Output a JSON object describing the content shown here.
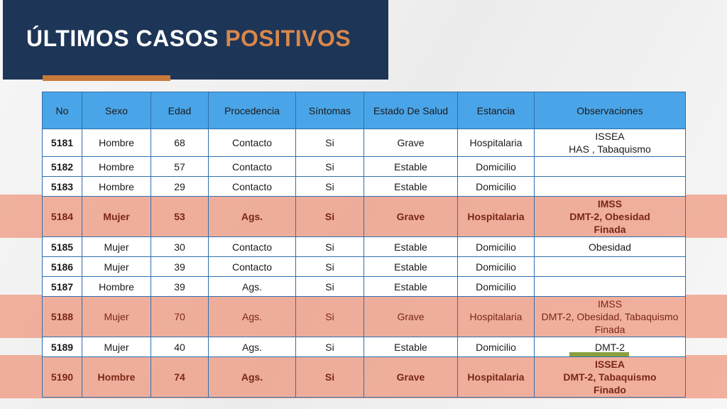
{
  "header": {
    "title": "ÚLTIMOS CASOS",
    "title_highlight": "POSITIVOS"
  },
  "table": {
    "columns": [
      "No",
      "Sexo",
      "Edad",
      "Procedencia",
      "Síntomas",
      "Estado De Salud",
      "Estancia",
      "Observaciones"
    ],
    "rows": [
      {
        "cells": [
          5181,
          "Hombre",
          68,
          "Contacto",
          "Si",
          "Grave",
          "Hospitalaria"
        ],
        "observaciones": [
          "ISSEA",
          "HAS , Tabaquismo"
        ],
        "highlight": false,
        "bold": false
      },
      {
        "cells": [
          5182,
          "Hombre",
          57,
          "Contacto",
          "Si",
          "Estable",
          "Domicilio"
        ],
        "observaciones": [],
        "highlight": false,
        "bold": false
      },
      {
        "cells": [
          5183,
          "Hombre",
          29,
          "Contacto",
          "Si",
          "Estable",
          "Domicilio"
        ],
        "observaciones": [],
        "highlight": false,
        "bold": false
      },
      {
        "cells": [
          5184,
          "Mujer",
          53,
          "Ags.",
          "Si",
          "Grave",
          "Hospitalaria"
        ],
        "observaciones": [
          "IMSS",
          "DMT-2, Obesidad",
          "Finada"
        ],
        "highlight": true,
        "bold": true
      },
      {
        "cells": [
          5185,
          "Mujer",
          30,
          "Contacto",
          "Si",
          "Estable",
          "Domicilio"
        ],
        "observaciones": [
          "Obesidad"
        ],
        "highlight": false,
        "bold": false
      },
      {
        "cells": [
          5186,
          "Mujer",
          39,
          "Contacto",
          "Si",
          "Estable",
          "Domicilio"
        ],
        "observaciones": [],
        "highlight": false,
        "bold": false
      },
      {
        "cells": [
          5187,
          "Hombre",
          39,
          "Ags.",
          "Si",
          "Estable",
          "Domicilio"
        ],
        "observaciones": [],
        "highlight": false,
        "bold": false
      },
      {
        "cells": [
          5188,
          "Mujer",
          70,
          "Ags.",
          "Si",
          "Grave",
          "Hospitalaria"
        ],
        "observaciones": [
          "IMSS",
          "DMT-2, Obesidad, Tabaquismo",
          "Finada"
        ],
        "highlight": true,
        "bold": false
      },
      {
        "cells": [
          5189,
          "Mujer",
          40,
          "Ags.",
          "Si",
          "Estable",
          "Domicilio"
        ],
        "observaciones": [
          "DMT-2"
        ],
        "highlight": false,
        "bold": false
      },
      {
        "cells": [
          5190,
          "Hombre",
          74,
          "Ags.",
          "Si",
          "Grave",
          "Hospitalaria"
        ],
        "observaciones": [
          "ISSEA",
          "DMT-2, Tabaquismo",
          "Finado"
        ],
        "highlight": true,
        "bold": true
      }
    ]
  }
}
